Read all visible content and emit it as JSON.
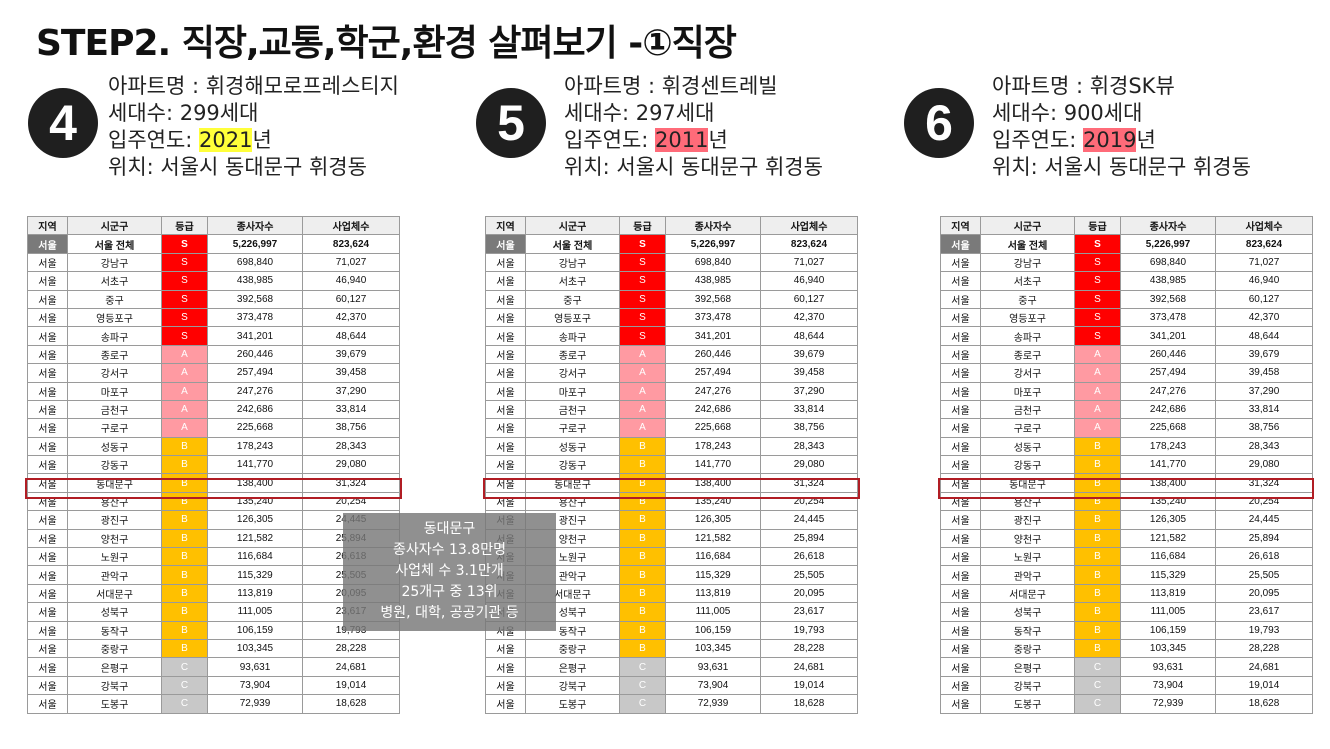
{
  "title": "STEP2. 직장,교통,학군,환경 살펴보기 -①직장",
  "apartments": [
    {
      "number": "4",
      "name_line": "아파트명 : 휘경해모로프레스티지",
      "households_line": "세대수: 299세대",
      "year_prefix": "입주연도: ",
      "year": "2021",
      "year_suffix": "년",
      "year_color": "#ffff3a",
      "location_line": "위치: 서울시 동대문구 휘경동"
    },
    {
      "number": "5",
      "name_line": "아파트명 : 휘경센트레빌",
      "households_line": "세대수: 297세대",
      "year_prefix": "입주연도: ",
      "year": "2011",
      "year_suffix": "년",
      "year_color": "#ff6b79",
      "location_line": "위치: 서울시 동대문구 휘경동"
    },
    {
      "number": "6",
      "name_line": "아파트명 : 휘경SK뷰",
      "households_line": "세대수: 900세대",
      "year_prefix": "입주연도: ",
      "year": "2019",
      "year_suffix": "년",
      "year_color": "#ff6b79",
      "location_line": "위치: 서울시 동대문구 휘경동"
    }
  ],
  "table": {
    "headers": [
      "지역",
      "시군구",
      "등급",
      "종사자수",
      "사업체수"
    ],
    "rows": [
      [
        "서울",
        "서울 전체",
        "S",
        "5,226,997",
        "823,624"
      ],
      [
        "서울",
        "강남구",
        "S",
        "698,840",
        "71,027"
      ],
      [
        "서울",
        "서초구",
        "S",
        "438,985",
        "46,940"
      ],
      [
        "서울",
        "중구",
        "S",
        "392,568",
        "60,127"
      ],
      [
        "서울",
        "영등포구",
        "S",
        "373,478",
        "42,370"
      ],
      [
        "서울",
        "송파구",
        "S",
        "341,201",
        "48,644"
      ],
      [
        "서울",
        "종로구",
        "A",
        "260,446",
        "39,679"
      ],
      [
        "서울",
        "강서구",
        "A",
        "257,494",
        "39,458"
      ],
      [
        "서울",
        "마포구",
        "A",
        "247,276",
        "37,290"
      ],
      [
        "서울",
        "금천구",
        "A",
        "242,686",
        "33,814"
      ],
      [
        "서울",
        "구로구",
        "A",
        "225,668",
        "38,756"
      ],
      [
        "서울",
        "성동구",
        "B",
        "178,243",
        "28,343"
      ],
      [
        "서울",
        "강동구",
        "B",
        "141,770",
        "29,080"
      ],
      [
        "서울",
        "동대문구",
        "B",
        "138,400",
        "31,324"
      ],
      [
        "서울",
        "용산구",
        "B",
        "135,240",
        "20,254"
      ],
      [
        "서울",
        "광진구",
        "B",
        "126,305",
        "24,445"
      ],
      [
        "서울",
        "양천구",
        "B",
        "121,582",
        "25,894"
      ],
      [
        "서울",
        "노원구",
        "B",
        "116,684",
        "26,618"
      ],
      [
        "서울",
        "관악구",
        "B",
        "115,329",
        "25,505"
      ],
      [
        "서울",
        "서대문구",
        "B",
        "113,819",
        "20,095"
      ],
      [
        "서울",
        "성북구",
        "B",
        "111,005",
        "23,617"
      ],
      [
        "서울",
        "동작구",
        "B",
        "106,159",
        "19,793"
      ],
      [
        "서울",
        "중랑구",
        "B",
        "103,345",
        "28,228"
      ],
      [
        "서울",
        "은평구",
        "C",
        "93,631",
        "24,681"
      ],
      [
        "서울",
        "강북구",
        "C",
        "73,904",
        "19,014"
      ],
      [
        "서울",
        "도봉구",
        "C",
        "72,939",
        "18,628"
      ]
    ],
    "highlight_row": 13
  },
  "tooltip": {
    "lines": [
      "동대문구",
      "종사자수 13.8만명",
      "사업체 수 3.1만개",
      "25개구 중 13위",
      "병원, 대학, 공공기관 등"
    ]
  },
  "colors": {
    "grade_S": "#ff0000",
    "grade_A": "#ff9aa2",
    "grade_B": "#ffc000",
    "grade_C": "#c8c8c8",
    "highlight_border": "#b11d24"
  }
}
